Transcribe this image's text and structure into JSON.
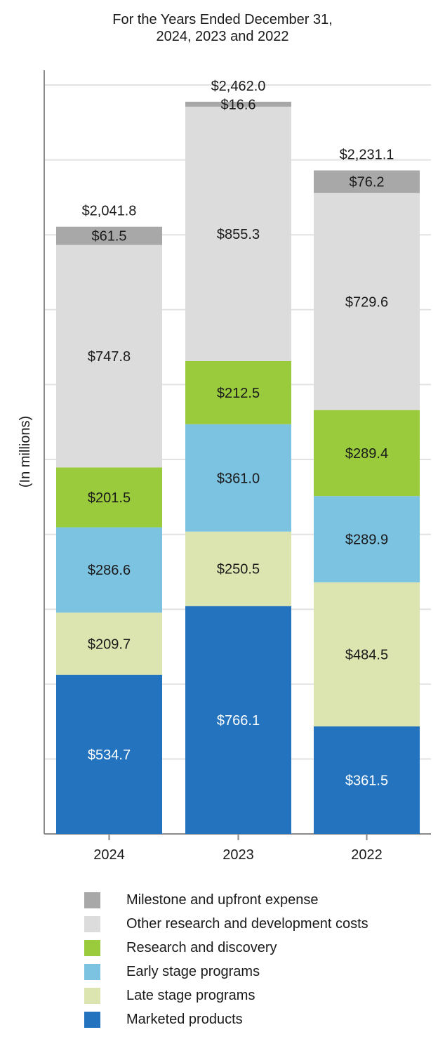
{
  "chart_data": {
    "type": "bar",
    "stacked": true,
    "title_lines": [
      "For the Years Ended December 31,",
      "2024, 2023 and 2022"
    ],
    "ylabel": "(In millions)",
    "ylim": [
      0,
      2550
    ],
    "grid": true,
    "legend_position": "bottom",
    "categories": [
      "2024",
      "2023",
      "2022"
    ],
    "totals": [
      "$2,041.8",
      "$2,462.0",
      "$2,231.1"
    ],
    "series": [
      {
        "name": "Marketed products",
        "color": "#2473be",
        "label_color": "#ffffff",
        "values": [
          534.7,
          766.1,
          361.5
        ],
        "labels": [
          "$534.7",
          "$766.1",
          "$361.5"
        ]
      },
      {
        "name": "Late stage programs",
        "color": "#dce5b0",
        "label_color": "#1a1a1a",
        "values": [
          209.7,
          250.5,
          484.5
        ],
        "labels": [
          "$209.7",
          "$250.5",
          "$484.5"
        ]
      },
      {
        "name": "Early stage programs",
        "color": "#7cc3e1",
        "label_color": "#1a1a1a",
        "values": [
          286.6,
          361.0,
          289.9
        ],
        "labels": [
          "$286.6",
          "$361.0",
          "$289.9"
        ]
      },
      {
        "name": "Research and discovery",
        "color": "#9acb3c",
        "label_color": "#1a1a1a",
        "values": [
          201.5,
          212.5,
          289.4
        ],
        "labels": [
          "$201.5",
          "$212.5",
          "$289.4"
        ]
      },
      {
        "name": "Other research and development costs",
        "color": "#dcdcdc",
        "label_color": "#1a1a1a",
        "values": [
          747.8,
          855.3,
          729.6
        ],
        "labels": [
          "$747.8",
          "$855.3",
          "$729.6"
        ]
      },
      {
        "name": "Milestone and upfront expense",
        "color": "#a8a8a8",
        "label_color": "#1a1a1a",
        "values": [
          61.5,
          16.6,
          76.2
        ],
        "labels": [
          "$61.5",
          "$16.6",
          "$76.2"
        ]
      }
    ],
    "legend_order": [
      "Milestone and upfront expense",
      "Other research and development costs",
      "Research and discovery",
      "Early stage programs",
      "Late stage programs",
      "Marketed products"
    ]
  }
}
